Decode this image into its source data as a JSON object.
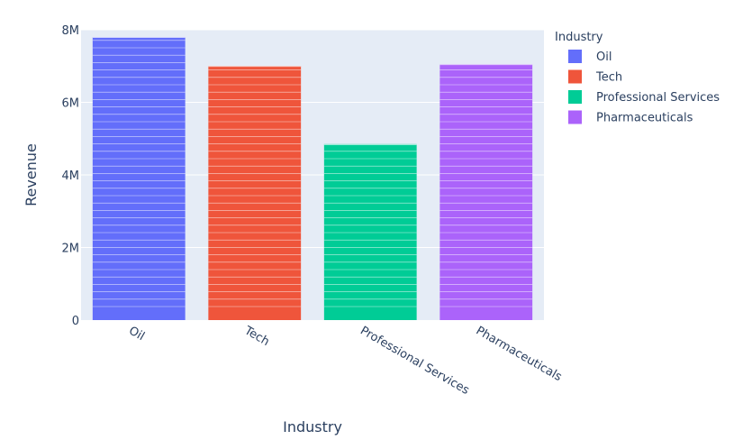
{
  "chart_data": {
    "type": "bar",
    "stacked": true,
    "categories": [
      "Oil",
      "Tech",
      "Professional Services",
      "Pharmaceuticals"
    ],
    "values": [
      7800000,
      7000000,
      4850000,
      7050000
    ],
    "series": [
      {
        "name": "Oil",
        "color": "#636efa",
        "values": [
          7800000,
          0,
          0,
          0
        ]
      },
      {
        "name": "Tech",
        "color": "#ef553b",
        "values": [
          0,
          7000000,
          0,
          0
        ]
      },
      {
        "name": "Professional Services",
        "color": "#00cc96",
        "values": [
          0,
          0,
          4850000,
          0
        ]
      },
      {
        "name": "Pharmaceuticals",
        "color": "#ab63fa",
        "values": [
          0,
          0,
          0,
          7050000
        ]
      }
    ],
    "xlabel": "Industry",
    "ylabel": "Revenue",
    "ylim": [
      0,
      8000000
    ],
    "yticks": [
      {
        "value": 0,
        "label": "0"
      },
      {
        "value": 2000000,
        "label": "2M"
      },
      {
        "value": 4000000,
        "label": "4M"
      },
      {
        "value": 6000000,
        "label": "6M"
      },
      {
        "value": 8000000,
        "label": "8M"
      }
    ],
    "legend": {
      "title": "Industry",
      "position": "top-right",
      "items": [
        "Oil",
        "Tech",
        "Professional Services",
        "Pharmaceuticals"
      ]
    },
    "grid": true,
    "plot_background": "#e5ecf6"
  }
}
